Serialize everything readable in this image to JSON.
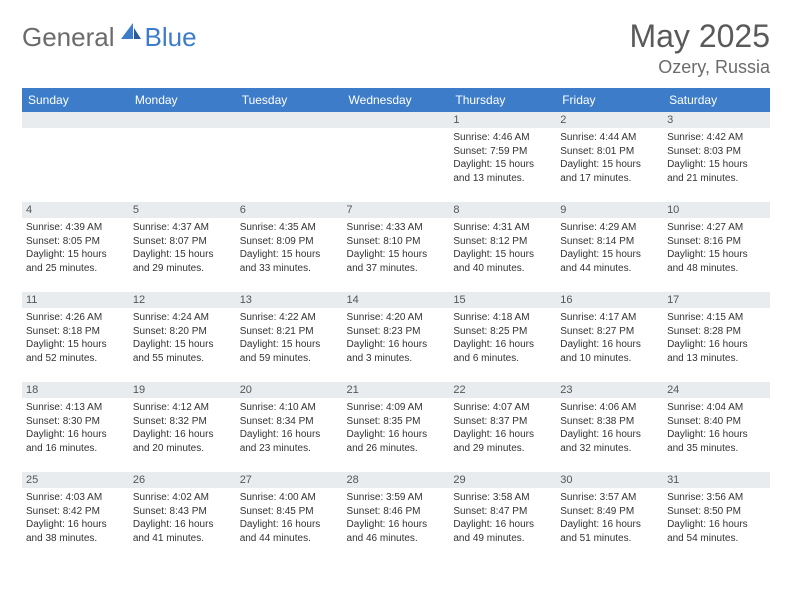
{
  "brand": {
    "general": "General",
    "blue": "Blue"
  },
  "header": {
    "title": "May 2025",
    "location": "Ozery, Russia"
  },
  "colors": {
    "header_bg": "#3d7cc9",
    "date_bar_bg": "#e9ecef",
    "text": "#333333",
    "title_color": "#5a5a5a"
  },
  "days_of_week": [
    "Sunday",
    "Monday",
    "Tuesday",
    "Wednesday",
    "Thursday",
    "Friday",
    "Saturday"
  ],
  "weeks": [
    [
      null,
      null,
      null,
      null,
      {
        "date": "1",
        "sunrise": "Sunrise: 4:46 AM",
        "sunset": "Sunset: 7:59 PM",
        "daylight": "Daylight: 15 hours and 13 minutes."
      },
      {
        "date": "2",
        "sunrise": "Sunrise: 4:44 AM",
        "sunset": "Sunset: 8:01 PM",
        "daylight": "Daylight: 15 hours and 17 minutes."
      },
      {
        "date": "3",
        "sunrise": "Sunrise: 4:42 AM",
        "sunset": "Sunset: 8:03 PM",
        "daylight": "Daylight: 15 hours and 21 minutes."
      }
    ],
    [
      {
        "date": "4",
        "sunrise": "Sunrise: 4:39 AM",
        "sunset": "Sunset: 8:05 PM",
        "daylight": "Daylight: 15 hours and 25 minutes."
      },
      {
        "date": "5",
        "sunrise": "Sunrise: 4:37 AM",
        "sunset": "Sunset: 8:07 PM",
        "daylight": "Daylight: 15 hours and 29 minutes."
      },
      {
        "date": "6",
        "sunrise": "Sunrise: 4:35 AM",
        "sunset": "Sunset: 8:09 PM",
        "daylight": "Daylight: 15 hours and 33 minutes."
      },
      {
        "date": "7",
        "sunrise": "Sunrise: 4:33 AM",
        "sunset": "Sunset: 8:10 PM",
        "daylight": "Daylight: 15 hours and 37 minutes."
      },
      {
        "date": "8",
        "sunrise": "Sunrise: 4:31 AM",
        "sunset": "Sunset: 8:12 PM",
        "daylight": "Daylight: 15 hours and 40 minutes."
      },
      {
        "date": "9",
        "sunrise": "Sunrise: 4:29 AM",
        "sunset": "Sunset: 8:14 PM",
        "daylight": "Daylight: 15 hours and 44 minutes."
      },
      {
        "date": "10",
        "sunrise": "Sunrise: 4:27 AM",
        "sunset": "Sunset: 8:16 PM",
        "daylight": "Daylight: 15 hours and 48 minutes."
      }
    ],
    [
      {
        "date": "11",
        "sunrise": "Sunrise: 4:26 AM",
        "sunset": "Sunset: 8:18 PM",
        "daylight": "Daylight: 15 hours and 52 minutes."
      },
      {
        "date": "12",
        "sunrise": "Sunrise: 4:24 AM",
        "sunset": "Sunset: 8:20 PM",
        "daylight": "Daylight: 15 hours and 55 minutes."
      },
      {
        "date": "13",
        "sunrise": "Sunrise: 4:22 AM",
        "sunset": "Sunset: 8:21 PM",
        "daylight": "Daylight: 15 hours and 59 minutes."
      },
      {
        "date": "14",
        "sunrise": "Sunrise: 4:20 AM",
        "sunset": "Sunset: 8:23 PM",
        "daylight": "Daylight: 16 hours and 3 minutes."
      },
      {
        "date": "15",
        "sunrise": "Sunrise: 4:18 AM",
        "sunset": "Sunset: 8:25 PM",
        "daylight": "Daylight: 16 hours and 6 minutes."
      },
      {
        "date": "16",
        "sunrise": "Sunrise: 4:17 AM",
        "sunset": "Sunset: 8:27 PM",
        "daylight": "Daylight: 16 hours and 10 minutes."
      },
      {
        "date": "17",
        "sunrise": "Sunrise: 4:15 AM",
        "sunset": "Sunset: 8:28 PM",
        "daylight": "Daylight: 16 hours and 13 minutes."
      }
    ],
    [
      {
        "date": "18",
        "sunrise": "Sunrise: 4:13 AM",
        "sunset": "Sunset: 8:30 PM",
        "daylight": "Daylight: 16 hours and 16 minutes."
      },
      {
        "date": "19",
        "sunrise": "Sunrise: 4:12 AM",
        "sunset": "Sunset: 8:32 PM",
        "daylight": "Daylight: 16 hours and 20 minutes."
      },
      {
        "date": "20",
        "sunrise": "Sunrise: 4:10 AM",
        "sunset": "Sunset: 8:34 PM",
        "daylight": "Daylight: 16 hours and 23 minutes."
      },
      {
        "date": "21",
        "sunrise": "Sunrise: 4:09 AM",
        "sunset": "Sunset: 8:35 PM",
        "daylight": "Daylight: 16 hours and 26 minutes."
      },
      {
        "date": "22",
        "sunrise": "Sunrise: 4:07 AM",
        "sunset": "Sunset: 8:37 PM",
        "daylight": "Daylight: 16 hours and 29 minutes."
      },
      {
        "date": "23",
        "sunrise": "Sunrise: 4:06 AM",
        "sunset": "Sunset: 8:38 PM",
        "daylight": "Daylight: 16 hours and 32 minutes."
      },
      {
        "date": "24",
        "sunrise": "Sunrise: 4:04 AM",
        "sunset": "Sunset: 8:40 PM",
        "daylight": "Daylight: 16 hours and 35 minutes."
      }
    ],
    [
      {
        "date": "25",
        "sunrise": "Sunrise: 4:03 AM",
        "sunset": "Sunset: 8:42 PM",
        "daylight": "Daylight: 16 hours and 38 minutes."
      },
      {
        "date": "26",
        "sunrise": "Sunrise: 4:02 AM",
        "sunset": "Sunset: 8:43 PM",
        "daylight": "Daylight: 16 hours and 41 minutes."
      },
      {
        "date": "27",
        "sunrise": "Sunrise: 4:00 AM",
        "sunset": "Sunset: 8:45 PM",
        "daylight": "Daylight: 16 hours and 44 minutes."
      },
      {
        "date": "28",
        "sunrise": "Sunrise: 3:59 AM",
        "sunset": "Sunset: 8:46 PM",
        "daylight": "Daylight: 16 hours and 46 minutes."
      },
      {
        "date": "29",
        "sunrise": "Sunrise: 3:58 AM",
        "sunset": "Sunset: 8:47 PM",
        "daylight": "Daylight: 16 hours and 49 minutes."
      },
      {
        "date": "30",
        "sunrise": "Sunrise: 3:57 AM",
        "sunset": "Sunset: 8:49 PM",
        "daylight": "Daylight: 16 hours and 51 minutes."
      },
      {
        "date": "31",
        "sunrise": "Sunrise: 3:56 AM",
        "sunset": "Sunset: 8:50 PM",
        "daylight": "Daylight: 16 hours and 54 minutes."
      }
    ]
  ]
}
